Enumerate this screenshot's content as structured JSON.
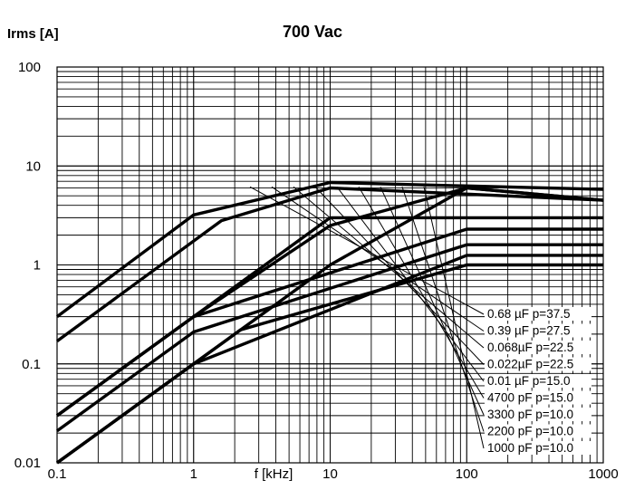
{
  "chart_data": {
    "type": "line",
    "title": "700 Vac",
    "ylabel": "Irms [A]",
    "xlabel": "f [kHz]",
    "x_scale": "log",
    "y_scale": "log",
    "xlim": [
      0.1,
      1000
    ],
    "ylim": [
      0.01,
      100
    ],
    "grid": true,
    "x_ticks": [
      "0.1",
      "1",
      "10",
      "100",
      "1000"
    ],
    "y_ticks": [
      "0.01",
      "0.1",
      "1",
      "10",
      "100"
    ],
    "legend_position": "bottom-right",
    "series": [
      {
        "name": "1000 pF  p=10.0",
        "x": [
          0.1,
          1.4,
          2.2,
          100,
          1000
        ],
        "y": [
          0.01,
          0.14,
          0.22,
          1.0,
          1.0
        ]
      },
      {
        "name": "2200 pF  p=10.0",
        "x": [
          0.1,
          1.0,
          100,
          1000
        ],
        "y": [
          0.01,
          0.1,
          1.25,
          1.25
        ]
      },
      {
        "name": "3300 pF  p=10.0",
        "x": [
          0.1,
          1.0,
          100,
          1000
        ],
        "y": [
          0.021,
          0.21,
          1.6,
          1.6
        ]
      },
      {
        "name": "4700 pF  p=15.0",
        "x": [
          0.1,
          1.0,
          100,
          1000
        ],
        "y": [
          0.03,
          0.3,
          2.3,
          2.3
        ]
      },
      {
        "name": "0.01  µF  p=15.0",
        "x": [
          0.1,
          10,
          100,
          1000
        ],
        "y": [
          0.03,
          3.0,
          3.0,
          3.0
        ]
      },
      {
        "name": "0.022µF  p=22.5",
        "x": [
          0.1,
          1.0,
          10,
          100,
          1000
        ],
        "y": [
          0.01,
          0.1,
          1.0,
          6.0,
          4.5
        ]
      },
      {
        "name": "0.068µF  p=22.5",
        "x": [
          0.1,
          1.0,
          10,
          100,
          1000
        ],
        "y": [
          0.03,
          0.3,
          2.5,
          6.0,
          4.5
        ]
      },
      {
        "name": "0.39  µF  p=27.5",
        "x": [
          0.1,
          1.6,
          10,
          1000
        ],
        "y": [
          0.17,
          2.8,
          6.0,
          4.5
        ]
      },
      {
        "name": "0.68  µF  p=37.5",
        "x": [
          0.1,
          1.0,
          10,
          1000
        ],
        "y": [
          0.3,
          3.2,
          6.8,
          5.8
        ]
      }
    ]
  }
}
